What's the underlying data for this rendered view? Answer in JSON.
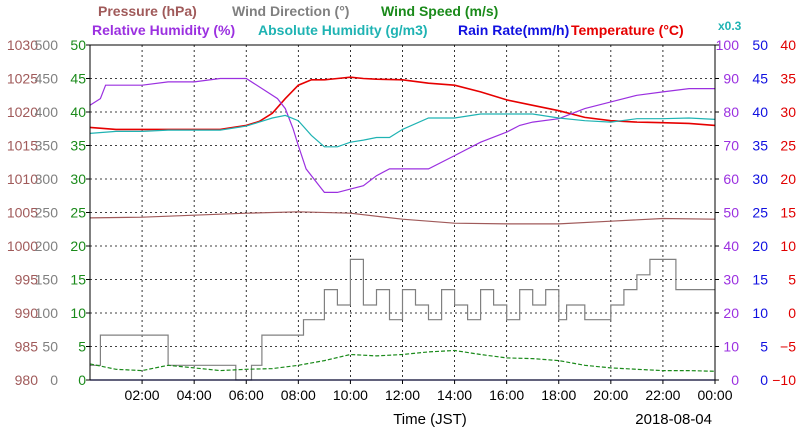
{
  "chart_data": {
    "type": "line",
    "date_label": "2018-08-04",
    "xlabel": "Time (JST)",
    "x_range": [
      "00:00",
      "24:00"
    ],
    "x_ticks": [
      "02:00",
      "04:00",
      "06:00",
      "08:00",
      "10:00",
      "12:00",
      "14:00",
      "16:00",
      "18:00",
      "20:00",
      "22:00",
      "00:00"
    ],
    "grid": true,
    "header_labels": {
      "pressure": "Pressure (hPa)",
      "wind_dir": "Wind Direction (°)",
      "wind_speed": "Wind Speed (m/s)",
      "humidity": "Relative Humidity (%)",
      "abs_humidity": "Absolute Humidity (g/m3)",
      "rain": "Rain Rate(mm/h)",
      "temperature": "Temperature (°C)",
      "abs_hum_scale": "x0.3"
    },
    "axes": {
      "pressure": {
        "range": [
          980,
          1030
        ],
        "ticks": [
          "980",
          "985",
          "990",
          "995",
          "1000",
          "1005",
          "1010",
          "1015",
          "1020",
          "1025",
          "1030"
        ],
        "color": "#a05a5a"
      },
      "wind_dir": {
        "range": [
          0,
          500
        ],
        "ticks": [
          "0",
          "50",
          "100",
          "150",
          "200",
          "250",
          "300",
          "350",
          "400",
          "450",
          "500"
        ],
        "color": "#808080"
      },
      "wind_speed": {
        "range": [
          0,
          50
        ],
        "ticks": [
          "0",
          "5",
          "10",
          "15",
          "20",
          "25",
          "30",
          "35",
          "40",
          "45",
          "50"
        ],
        "color": "#1a8a1a"
      },
      "humidity": {
        "range": [
          0,
          100
        ],
        "ticks": [
          "0",
          "10",
          "20",
          "30",
          "40",
          "50",
          "60",
          "70",
          "80",
          "90",
          "100"
        ],
        "color": "#9b30e0"
      },
      "rain": {
        "range": [
          0,
          50
        ],
        "ticks": [
          "0",
          "5",
          "10",
          "15",
          "20",
          "25",
          "30",
          "35",
          "40",
          "45",
          "50"
        ],
        "color": "#1010e0"
      },
      "temperature": {
        "range": [
          -10,
          40
        ],
        "ticks": [
          "−10",
          "−5",
          "0",
          "5",
          "10",
          "15",
          "20",
          "25",
          "30",
          "35",
          "40"
        ],
        "color": "#e00000"
      }
    },
    "series": [
      {
        "name": "Temperature",
        "color": "#e60000",
        "x": [
          0,
          1,
          2,
          3,
          4,
          5,
          6,
          6.5,
          7,
          7.5,
          8,
          8.5,
          9,
          9.5,
          10,
          10.5,
          11,
          12,
          13,
          14,
          15,
          16,
          17,
          18,
          19,
          20,
          21,
          22,
          23,
          24
        ],
        "y": [
          27.7,
          27.4,
          27.4,
          27.4,
          27.4,
          27.4,
          28,
          28.6,
          29.8,
          32,
          34,
          34.8,
          34.8,
          35,
          35.2,
          35,
          34.9,
          34.8,
          34.3,
          34,
          33,
          31.8,
          31,
          30.2,
          29.2,
          28.7,
          28.5,
          28.4,
          28.3,
          28
        ]
      },
      {
        "name": "Relative Humidity",
        "color": "#9b30e0",
        "x": [
          0,
          0.4,
          0.6,
          1,
          2,
          3,
          4,
          5,
          6,
          6.8,
          7.2,
          7.5,
          7.8,
          8,
          8.3,
          8.8,
          9,
          9.5,
          10,
          10.5,
          11,
          11.5,
          12,
          13,
          14,
          15,
          16,
          16.5,
          17,
          18,
          19,
          20,
          21,
          22,
          23,
          24
        ],
        "y": [
          82,
          84,
          88,
          88,
          88,
          89,
          89,
          90,
          90,
          86,
          84,
          81,
          75,
          70,
          63,
          58,
          56,
          56,
          57,
          58,
          61,
          63,
          63,
          63,
          67,
          71,
          74,
          76,
          77,
          78,
          81,
          83,
          85,
          86,
          87,
          87
        ]
      },
      {
        "name": "Absolute Humidity",
        "color": "#1fb3b3",
        "x": [
          0,
          1,
          2,
          3,
          4,
          5,
          6,
          6.5,
          7,
          7.5,
          8,
          8.5,
          9,
          9.5,
          10,
          10.5,
          11,
          11.5,
          12,
          13,
          14,
          15,
          16,
          17,
          18,
          19,
          20,
          21,
          22,
          23,
          24
        ],
        "y": [
          73.6,
          74.2,
          74.2,
          74.6,
          74.6,
          74.6,
          75.8,
          77,
          78.2,
          79,
          77.4,
          73,
          69.6,
          69.6,
          71,
          71.6,
          72.4,
          72.4,
          74.8,
          78.2,
          78.2,
          79.4,
          79.4,
          79.4,
          78.2,
          77.4,
          77,
          78,
          78,
          78.2,
          77.8
        ]
      },
      {
        "name": "Pressure",
        "color": "#a05a5a",
        "x": [
          0,
          2,
          4,
          6,
          8,
          10,
          12,
          14,
          16,
          18,
          20,
          22,
          24
        ],
        "y": [
          1004.2,
          1004.3,
          1004.6,
          1004.9,
          1005.1,
          1004.9,
          1004.0,
          1003.4,
          1003.3,
          1003.3,
          1003.7,
          1004.1,
          1004.0
        ]
      },
      {
        "name": "Wind Direction",
        "color": "#808080",
        "x": [
          0,
          0.4,
          0.4,
          1,
          1,
          3,
          3,
          5.6,
          5.6,
          6.2,
          6.2,
          6.6,
          6.6,
          8.2,
          8.2,
          9,
          9,
          9.5,
          9.5,
          10,
          10,
          10.5,
          10.5,
          11,
          11,
          11.5,
          11.5,
          12,
          12,
          12.5,
          12.5,
          13,
          13,
          13.5,
          13.5,
          14,
          14,
          14.5,
          14.5,
          15,
          15,
          15.5,
          15.5,
          16,
          16,
          16.5,
          16.5,
          17,
          17,
          17.5,
          17.5,
          18,
          18,
          18.3,
          18.3,
          19,
          19,
          20,
          20,
          20.5,
          20.5,
          21,
          21,
          21.5,
          21.5,
          22.5,
          22.5,
          24
        ],
        "y": [
          22,
          22,
          67,
          67,
          67,
          67,
          22,
          22,
          0,
          0,
          22,
          22,
          67,
          67,
          90,
          90,
          135,
          135,
          112,
          112,
          180,
          180,
          112,
          112,
          135,
          135,
          90,
          90,
          135,
          135,
          112,
          112,
          90,
          90,
          135,
          135,
          112,
          112,
          90,
          90,
          135,
          135,
          112,
          112,
          90,
          90,
          135,
          135,
          112,
          112,
          135,
          135,
          90,
          90,
          112,
          112,
          90,
          90,
          112,
          112,
          135,
          135,
          157,
          157,
          180,
          180,
          135,
          135
        ]
      },
      {
        "name": "Wind Speed",
        "color": "#1a8a1a",
        "x": [
          0,
          1,
          2,
          3,
          4,
          5,
          6,
          7,
          8,
          9,
          10,
          11,
          12,
          13,
          14,
          15,
          16,
          17,
          18,
          19,
          20,
          21,
          22,
          23,
          24
        ],
        "y": [
          2.4,
          1.6,
          1.4,
          2.2,
          1.8,
          1.4,
          1.6,
          1.7,
          2.2,
          2.9,
          3.8,
          3.6,
          3.8,
          4.2,
          4.4,
          3.8,
          3.3,
          3.2,
          2.9,
          2.2,
          1.8,
          1.6,
          1.4,
          1.4,
          1.3
        ]
      },
      {
        "name": "Rain Rate",
        "color": "#1010e0",
        "x": [
          0,
          24
        ],
        "y": [
          0,
          0
        ]
      }
    ]
  }
}
